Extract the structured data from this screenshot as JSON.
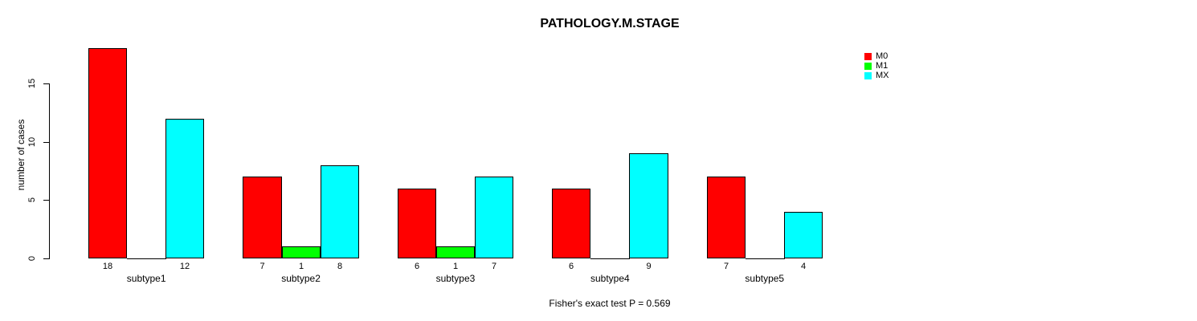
{
  "chart_data": {
    "type": "bar",
    "title": "PATHOLOGY.M.STAGE",
    "xlabel": "",
    "ylabel": "number of cases",
    "categories": [
      "subtype1",
      "subtype2",
      "subtype3",
      "subtype4",
      "subtype5"
    ],
    "series": [
      {
        "name": "M0",
        "color": "#FF0000",
        "values": [
          18,
          7,
          6,
          6,
          7
        ]
      },
      {
        "name": "M1",
        "color": "#00FF00",
        "values": [
          0,
          1,
          1,
          0,
          0
        ]
      },
      {
        "name": "MX",
        "color": "#00FFFF",
        "values": [
          12,
          8,
          7,
          9,
          4
        ]
      }
    ],
    "yticks": [
      0,
      5,
      10,
      15
    ],
    "ylim": [
      0,
      18.2
    ],
    "grid": false,
    "legend_position": "top-right",
    "bar_value_labels": true,
    "zero_value_labels_hidden": true,
    "annotation": "Fisher's exact test P = 0.569"
  }
}
